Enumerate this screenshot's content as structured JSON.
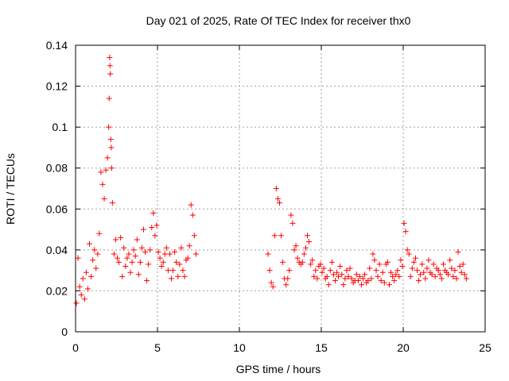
{
  "chart_data": {
    "type": "scatter",
    "title": "Day 021 of 2025, Rate Of TEC Index for receiver thx0",
    "xlabel": "GPS time / hours",
    "ylabel": "ROTI / TECUs",
    "xlim": [
      0,
      25
    ],
    "ylim": [
      0,
      0.14
    ],
    "x_ticks": [
      0,
      5,
      10,
      15,
      20,
      25
    ],
    "y_ticks": [
      0,
      0.02,
      0.04,
      0.06,
      0.08,
      0.1,
      0.12,
      0.14
    ],
    "x_tick_labels": [
      "0",
      "5",
      "10",
      "15",
      "20",
      "25"
    ],
    "y_tick_labels": [
      "0",
      "0.02",
      "0.04",
      "0.06",
      "0.08",
      "0.1",
      "0.12",
      "0.14"
    ],
    "grid": true,
    "legend": "none",
    "marker": "plus",
    "series_color": "#ff0000",
    "series": [
      {
        "x": [
          0.05,
          0.15,
          0.25,
          0.35,
          0.45,
          0.55,
          0.65,
          0.75,
          0.85,
          0.95,
          1.05,
          1.15,
          1.25,
          1.35,
          1.45,
          1.55,
          1.65,
          1.75,
          1.85,
          1.95,
          2.02,
          2.05,
          2.08,
          2.1,
          2.12,
          2.15,
          2.18,
          2.2,
          2.25,
          2.35,
          2.45,
          2.55,
          2.65,
          2.75,
          2.85,
          2.95,
          3.05,
          3.15,
          3.25,
          3.35,
          3.45,
          3.55,
          3.65,
          3.75,
          3.85,
          3.95,
          4.05,
          4.15,
          4.25,
          4.35,
          4.45,
          4.55,
          4.65,
          4.75,
          4.85,
          4.95,
          5.05,
          5.15,
          5.25,
          5.35,
          5.45,
          5.55,
          5.65,
          5.75,
          5.85,
          5.95,
          6.05,
          6.15,
          6.25,
          6.35,
          6.45,
          6.55,
          6.65,
          6.75,
          6.85,
          6.95,
          7.05,
          7.15,
          7.25,
          7.35,
          11.75,
          11.85,
          11.95,
          12.05,
          12.15,
          12.25,
          12.35,
          12.45,
          12.55,
          12.65,
          12.75,
          12.85,
          12.95,
          13.05,
          13.15,
          13.25,
          13.35,
          13.45,
          13.55,
          13.65,
          13.75,
          13.85,
          13.95,
          14.05,
          14.15,
          14.25,
          14.35,
          14.45,
          14.55,
          14.65,
          14.75,
          14.85,
          14.95,
          15.05,
          15.15,
          15.25,
          15.35,
          15.45,
          15.55,
          15.65,
          15.75,
          15.85,
          15.95,
          16.05,
          16.15,
          16.25,
          16.35,
          16.45,
          16.55,
          16.65,
          16.75,
          16.85,
          16.95,
          17.05,
          17.15,
          17.25,
          17.35,
          17.45,
          17.55,
          17.65,
          17.75,
          17.85,
          17.95,
          18.05,
          18.15,
          18.25,
          18.35,
          18.45,
          18.55,
          18.65,
          18.75,
          18.85,
          18.95,
          19.05,
          19.15,
          19.25,
          19.35,
          19.45,
          19.55,
          19.65,
          19.75,
          19.85,
          19.95,
          20.05,
          20.15,
          20.25,
          20.35,
          20.45,
          20.55,
          20.65,
          20.75,
          20.85,
          20.95,
          21.05,
          21.15,
          21.25,
          21.35,
          21.45,
          21.55,
          21.65,
          21.75,
          21.85,
          21.95,
          22.05,
          22.15,
          22.25,
          22.35,
          22.45,
          22.55,
          22.65,
          22.75,
          22.85,
          22.95,
          23.05,
          23.15,
          23.25,
          23.35,
          23.45,
          23.55,
          23.65,
          23.75,
          23.85
        ],
        "y": [
          0.014,
          0.036,
          0.022,
          0.018,
          0.026,
          0.016,
          0.029,
          0.021,
          0.043,
          0.027,
          0.035,
          0.04,
          0.031,
          0.038,
          0.048,
          0.078,
          0.072,
          0.065,
          0.079,
          0.085,
          0.1,
          0.114,
          0.134,
          0.13,
          0.126,
          0.094,
          0.09,
          0.08,
          0.063,
          0.038,
          0.045,
          0.036,
          0.034,
          0.046,
          0.027,
          0.041,
          0.032,
          0.036,
          0.038,
          0.029,
          0.034,
          0.04,
          0.037,
          0.045,
          0.028,
          0.034,
          0.041,
          0.05,
          0.039,
          0.025,
          0.033,
          0.04,
          0.051,
          0.058,
          0.047,
          0.052,
          0.039,
          0.036,
          0.032,
          0.034,
          0.038,
          0.041,
          0.03,
          0.038,
          0.026,
          0.03,
          0.039,
          0.034,
          0.027,
          0.033,
          0.041,
          0.03,
          0.027,
          0.035,
          0.036,
          0.042,
          0.062,
          0.057,
          0.047,
          0.038,
          0.038,
          0.03,
          0.024,
          0.022,
          0.047,
          0.07,
          0.065,
          0.063,
          0.047,
          0.034,
          0.026,
          0.023,
          0.026,
          0.03,
          0.057,
          0.053,
          0.04,
          0.042,
          0.036,
          0.034,
          0.033,
          0.034,
          0.038,
          0.041,
          0.047,
          0.044,
          0.033,
          0.035,
          0.027,
          0.03,
          0.026,
          0.032,
          0.033,
          0.029,
          0.031,
          0.026,
          0.027,
          0.023,
          0.03,
          0.034,
          0.028,
          0.025,
          0.029,
          0.027,
          0.032,
          0.028,
          0.023,
          0.026,
          0.03,
          0.027,
          0.031,
          0.026,
          0.024,
          0.025,
          0.028,
          0.025,
          0.027,
          0.023,
          0.026,
          0.028,
          0.024,
          0.025,
          0.031,
          0.026,
          0.038,
          0.035,
          0.03,
          0.027,
          0.033,
          0.025,
          0.029,
          0.024,
          0.033,
          0.034,
          0.023,
          0.029,
          0.027,
          0.025,
          0.028,
          0.03,
          0.027,
          0.035,
          0.032,
          0.053,
          0.049,
          0.04,
          0.038,
          0.027,
          0.031,
          0.034,
          0.036,
          0.03,
          0.025,
          0.028,
          0.033,
          0.029,
          0.026,
          0.031,
          0.035,
          0.029,
          0.028,
          0.033,
          0.027,
          0.031,
          0.03,
          0.028,
          0.026,
          0.033,
          0.03,
          0.029,
          0.028,
          0.035,
          0.031,
          0.027,
          0.03,
          0.026,
          0.039,
          0.032,
          0.029,
          0.033,
          0.028,
          0.026
        ]
      }
    ],
    "annotations": []
  }
}
